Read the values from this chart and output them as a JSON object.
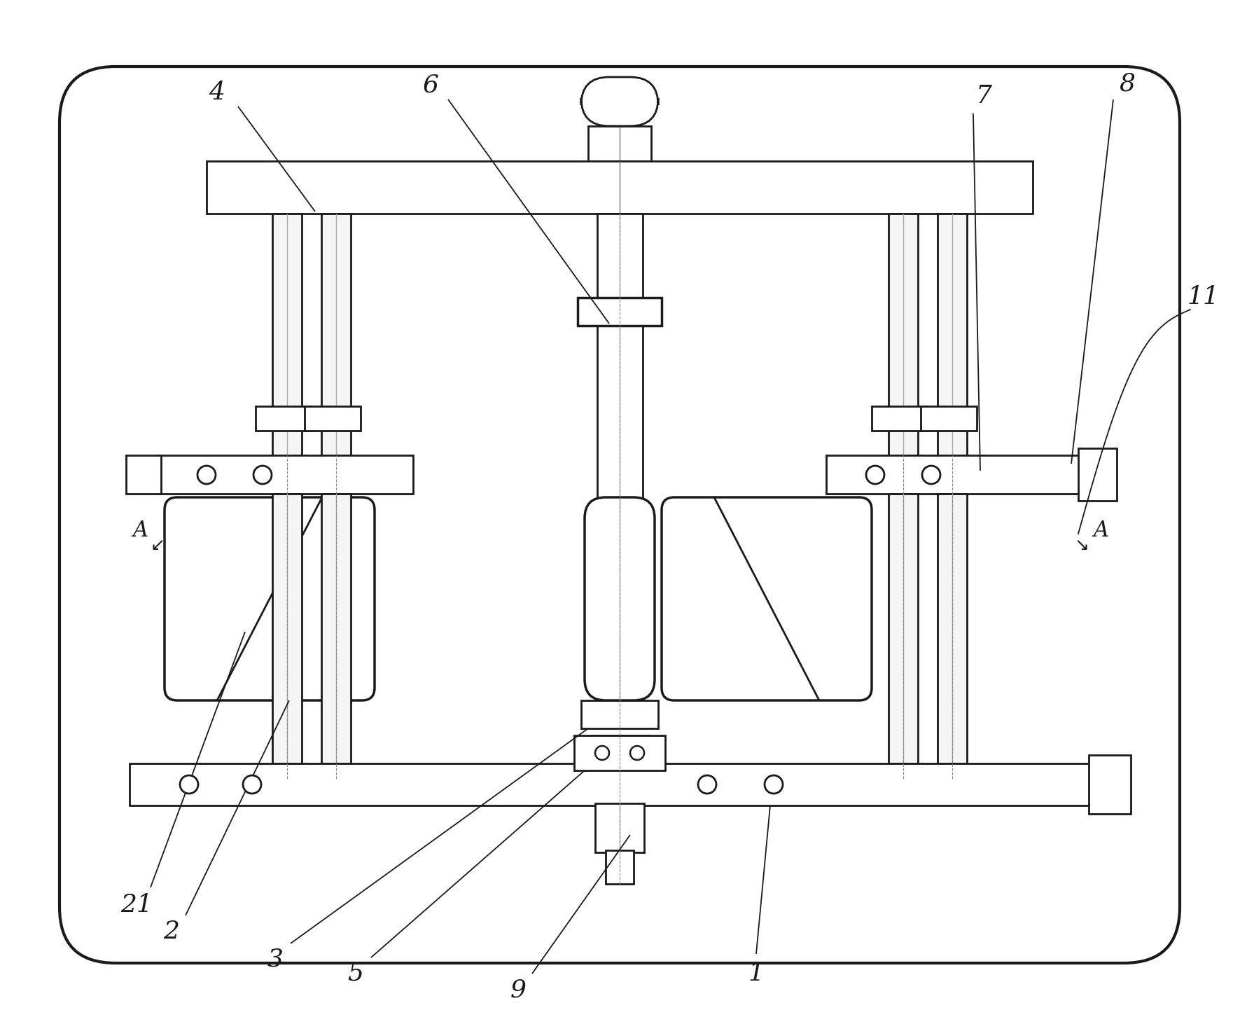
{
  "bg_color": "#ffffff",
  "lc": "#1a1a1a",
  "lw": 2.0,
  "tlw": 1.0,
  "fig_w": 17.71,
  "fig_h": 14.62,
  "dpi": 100
}
